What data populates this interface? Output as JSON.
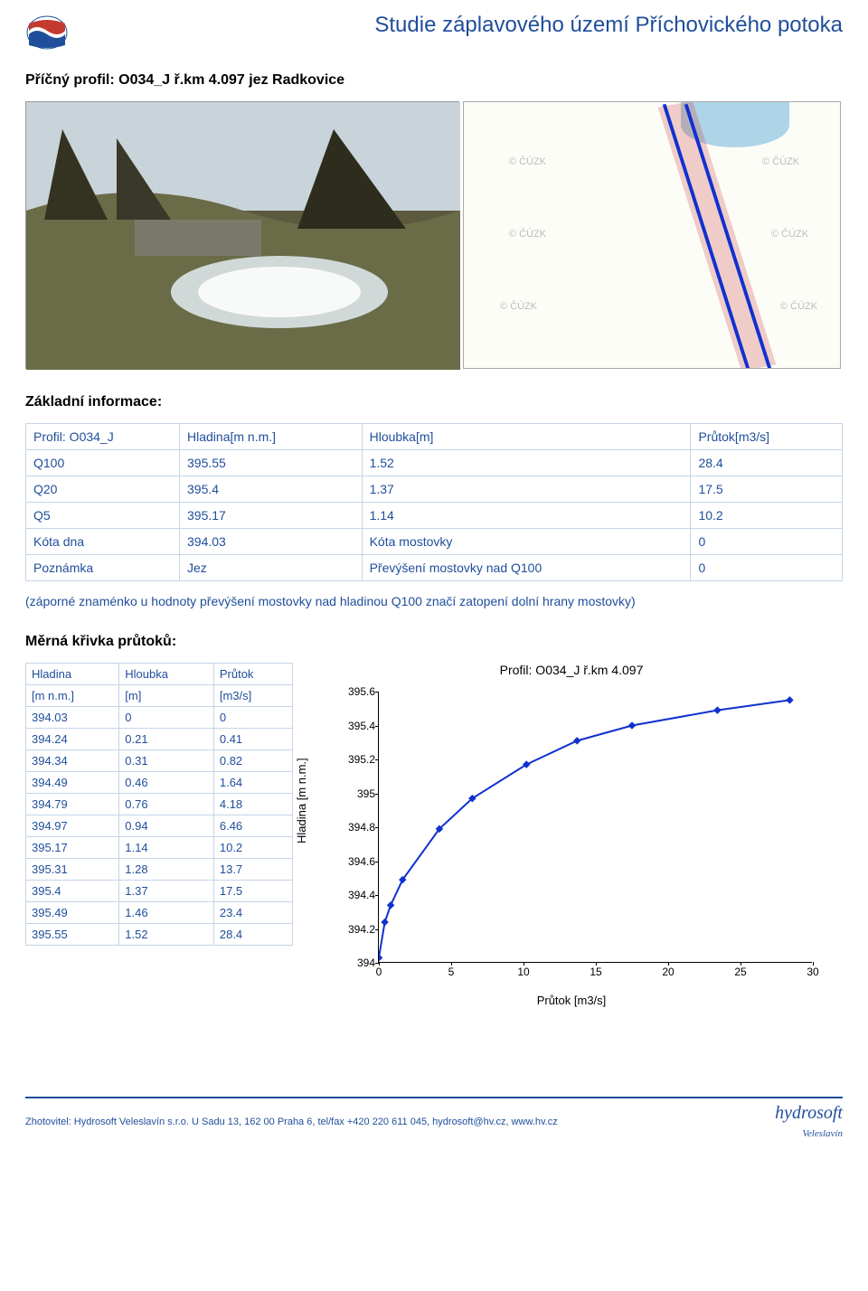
{
  "header": {
    "title": "Studie záplavového území Příchovického potoka"
  },
  "profile_title": "Příčný profil: O034_J ř.km 4.097 jez Radkovice",
  "basic_info_heading": "Základní informace:",
  "info": {
    "r0c0": "Profil: O034_J",
    "r0c1": "Hladina[m n.m.]",
    "r0c2": "Hloubka[m]",
    "r0c3": "Průtok[m3/s]",
    "r1c0": "Q100",
    "r1c1": "395.55",
    "r1c2": "1.52",
    "r1c3": "28.4",
    "r2c0": "Q20",
    "r2c1": "395.4",
    "r2c2": "1.37",
    "r2c3": "17.5",
    "r3c0": "Q5",
    "r3c1": "395.17",
    "r3c2": "1.14",
    "r3c3": "10.2",
    "r4c0": "Kóta dna",
    "r4c1": "394.03",
    "r4c2": "Kóta mostovky",
    "r4c3": "0",
    "r5c0": "Poznámka",
    "r5c1": "Jez",
    "r5c2": "Převýšení mostovky nad Q100",
    "r5c3": "0"
  },
  "note": "(záporné znaménko u hodnoty převýšení mostovky nad hladinou Q100 značí zatopení dolní hrany mostovky)",
  "curve_heading": "Měrná křivka průtoků:",
  "curve_headers": {
    "h": "Hladina",
    "d": "Hloubka",
    "q": "Průtok",
    "hu": "[m n.m.]",
    "du": "[m]",
    "qu": "[m3/s]"
  },
  "curve_rows": [
    {
      "h": "394.03",
      "d": "0",
      "q": "0"
    },
    {
      "h": "394.24",
      "d": "0.21",
      "q": "0.41"
    },
    {
      "h": "394.34",
      "d": "0.31",
      "q": "0.82"
    },
    {
      "h": "394.49",
      "d": "0.46",
      "q": "1.64"
    },
    {
      "h": "394.79",
      "d": "0.76",
      "q": "4.18"
    },
    {
      "h": "394.97",
      "d": "0.94",
      "q": "6.46"
    },
    {
      "h": "395.17",
      "d": "1.14",
      "q": "10.2"
    },
    {
      "h": "395.31",
      "d": "1.28",
      "q": "13.7"
    },
    {
      "h": "395.4",
      "d": "1.37",
      "q": "17.5"
    },
    {
      "h": "395.49",
      "d": "1.46",
      "q": "23.4"
    },
    {
      "h": "395.55",
      "d": "1.52",
      "q": "28.4"
    }
  ],
  "chart": {
    "title": "Profil: O034_J  ř.km 4.097",
    "ylabel": "Hladina [m n.m.]",
    "xlabel": "Průtok [m3/s]",
    "ymin": 394.0,
    "ymax": 395.6,
    "ystep": 0.2,
    "xmin": 0,
    "xmax": 30,
    "xstep": 5,
    "series": [
      {
        "x": 0,
        "y": 394.03
      },
      {
        "x": 0.41,
        "y": 394.24
      },
      {
        "x": 0.82,
        "y": 394.34
      },
      {
        "x": 1.64,
        "y": 394.49
      },
      {
        "x": 4.18,
        "y": 394.79
      },
      {
        "x": 6.46,
        "y": 394.97
      },
      {
        "x": 10.2,
        "y": 395.17
      },
      {
        "x": 13.7,
        "y": 395.31
      },
      {
        "x": 17.5,
        "y": 395.4
      },
      {
        "x": 23.4,
        "y": 395.49
      },
      {
        "x": 28.4,
        "y": 395.55
      }
    ],
    "yticks": [
      "394",
      "394.2",
      "394.4",
      "394.6",
      "394.8",
      "395",
      "395.2",
      "395.4",
      "395.6"
    ],
    "xticks": [
      "0",
      "5",
      "10",
      "15",
      "20",
      "25",
      "30"
    ],
    "line_color": "#1030d0"
  },
  "footer": {
    "text": "Zhotovitel: Hydrosoft Veleslavín s.r.o. U Sadu 13, 162 00 Praha 6, tel/fax +420 220 611 045, hydrosoft@hv.cz, www.hv.cz",
    "logo_main": "hydrosoft",
    "logo_sub": "Veleslavín"
  }
}
